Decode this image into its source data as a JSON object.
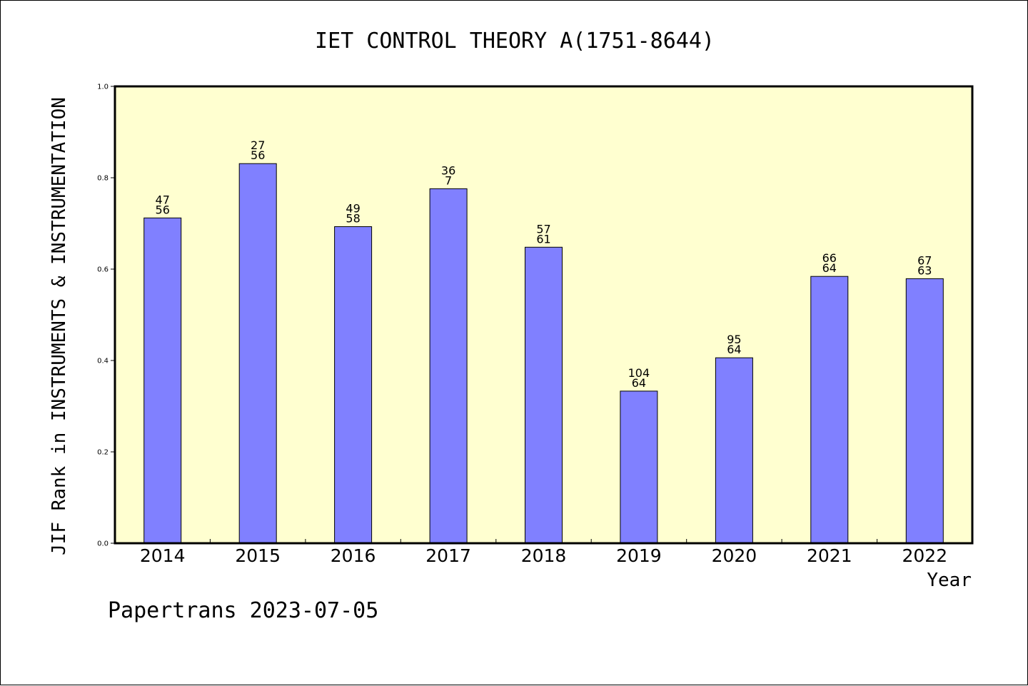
{
  "chart_data": {
    "type": "bar",
    "title": "IET CONTROL THEORY A(1751-8644)",
    "xlabel": "Year",
    "ylabel": "JIF Rank in INSTRUMENTS & INSTRUMENTATION",
    "ylim": [
      0,
      1.0
    ],
    "yticks": [
      "0.0",
      "0.2",
      "0.4",
      "0.6",
      "0.8",
      "1.0"
    ],
    "grid": false,
    "categories": [
      "2014",
      "2015",
      "2016",
      "2017",
      "2018",
      "2019",
      "2020",
      "2021",
      "2022"
    ],
    "values": [
      0.712,
      0.831,
      0.693,
      0.776,
      0.648,
      0.333,
      0.406,
      0.584,
      0.579
    ],
    "bar_labels": [
      [
        "47",
        "56"
      ],
      [
        "27",
        "56"
      ],
      [
        "49",
        "58"
      ],
      [
        "36",
        "7"
      ],
      [
        "57",
        "61"
      ],
      [
        "104",
        "64"
      ],
      [
        "95",
        "64"
      ],
      [
        "66",
        "64"
      ],
      [
        "67",
        "63"
      ]
    ],
    "colors": {
      "bar_fill": "#8080ff",
      "plot_background": "#ffffd0",
      "axis": "#000000"
    }
  },
  "footer": {
    "text": "Papertrans 2023-07-05"
  }
}
